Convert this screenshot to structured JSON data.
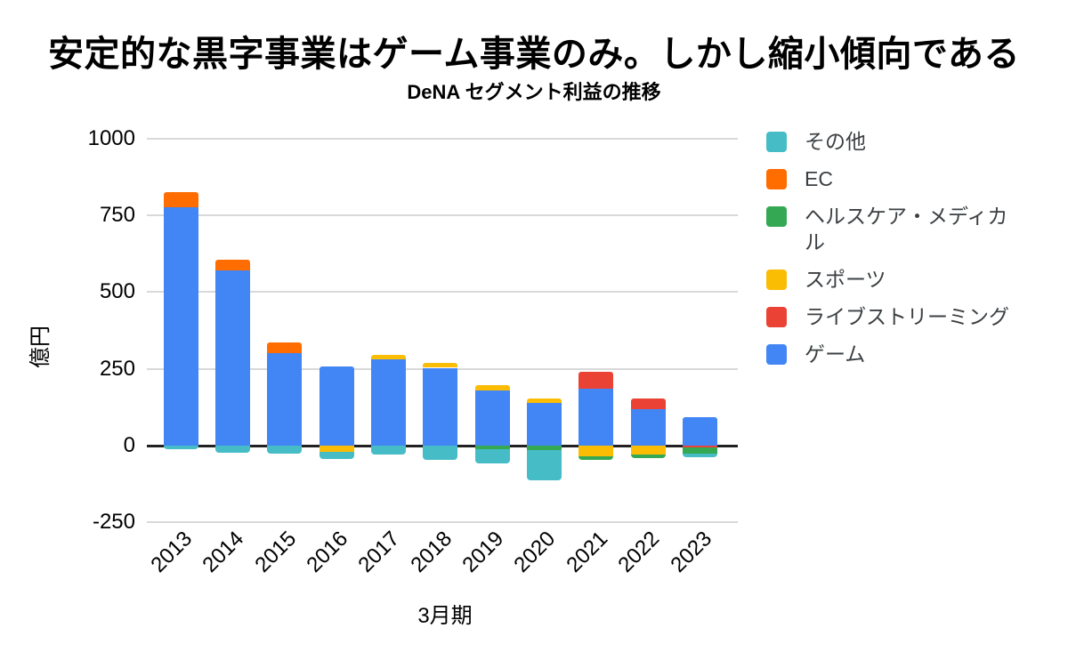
{
  "headline": "安定的な黒字事業はゲーム事業のみ。しかし縮小傾向である",
  "chart_data": {
    "type": "bar",
    "stacked": true,
    "title": "DeNA セグメント利益の推移",
    "xlabel": "3月期",
    "ylabel": "億円",
    "ylim": [
      -250,
      1000
    ],
    "y_ticks": [
      1000,
      750,
      500,
      250,
      0,
      -250
    ],
    "grid": true,
    "legend_position": "right",
    "categories": [
      "2013",
      "2014",
      "2015",
      "2016",
      "2017",
      "2018",
      "2019",
      "2020",
      "2021",
      "2022",
      "2023"
    ],
    "series": [
      {
        "name": "ゲーム",
        "color": "#4285F4",
        "values": [
          775,
          570,
          301,
          258,
          281,
          253,
          181,
          140,
          185,
          118,
          94
        ]
      },
      {
        "name": "ライブストリーミング",
        "color": "#EA4335",
        "values": [
          0,
          0,
          0,
          0,
          0,
          0,
          0,
          0,
          55,
          36,
          -5
        ]
      },
      {
        "name": "スポーツ",
        "color": "#FBBC04",
        "values": [
          0,
          0,
          0,
          -20,
          14,
          15,
          17,
          14,
          -35,
          -29,
          0
        ]
      },
      {
        "name": "ヘルスケア・メディカル",
        "color": "#34A853",
        "values": [
          0,
          0,
          0,
          0,
          0,
          0,
          -13,
          -15,
          -12,
          -11,
          -22
        ]
      },
      {
        "name": "EC",
        "color": "#FF6D01",
        "values": [
          50,
          35,
          34,
          0,
          0,
          0,
          0,
          0,
          0,
          0,
          0
        ]
      },
      {
        "name": "その他",
        "color": "#46BDC6",
        "values": [
          -13,
          -22,
          -25,
          -22,
          -29,
          -46,
          -45,
          -99,
          0,
          0,
          -12
        ]
      }
    ]
  },
  "legend": [
    {
      "label": "その他",
      "color": "#46BDC6"
    },
    {
      "label": "EC",
      "color": "#FF6D01"
    },
    {
      "label": "ヘルスケア・メディカル",
      "color": "#34A853"
    },
    {
      "label": "スポーツ",
      "color": "#FBBC04"
    },
    {
      "label": "ライブストリーミング",
      "color": "#EA4335"
    },
    {
      "label": "ゲーム",
      "color": "#4285F4"
    }
  ]
}
